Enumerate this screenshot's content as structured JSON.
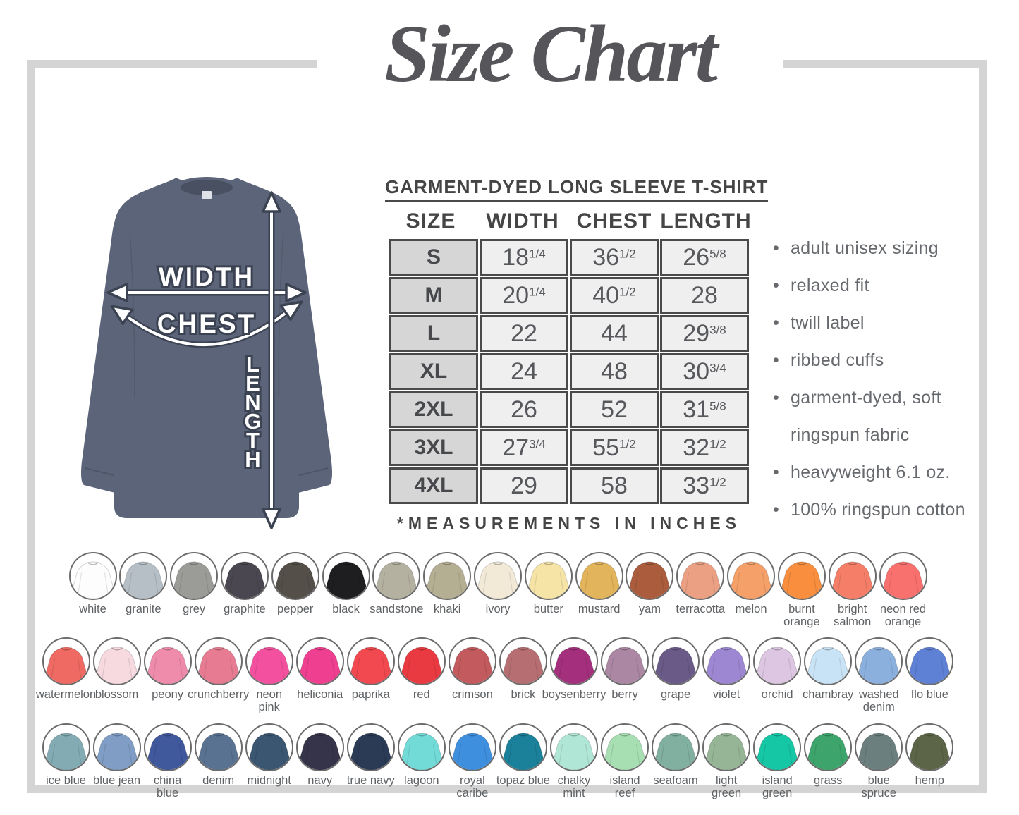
{
  "title": "Size Chart",
  "diagram": {
    "width_label": "WIDTH",
    "chest_label": "CHEST",
    "length_label": "LENGTH",
    "shirt_color": "#5b6478"
  },
  "size_table": {
    "title": "GARMENT-DYED LONG SLEEVE T-SHIRT",
    "columns": [
      "SIZE",
      "WIDTH",
      "CHEST",
      "LENGTH"
    ],
    "rows": [
      {
        "size": "S",
        "width": "18 1/4",
        "chest": "36 1/2",
        "length": "26 5/8"
      },
      {
        "size": "M",
        "width": "20 1/4",
        "chest": "40 1/2",
        "length": "28"
      },
      {
        "size": "L",
        "width": "22",
        "chest": "44",
        "length": "29 3/8"
      },
      {
        "size": "XL",
        "width": "24",
        "chest": "48",
        "length": "30 3/4"
      },
      {
        "size": "2XL",
        "width": "26",
        "chest": "52",
        "length": "31 5/8"
      },
      {
        "size": "3XL",
        "width": "27 3/4",
        "chest": "55 1/2",
        "length": "32 1/2"
      },
      {
        "size": "4XL",
        "width": "29",
        "chest": "58",
        "length": "33 1/2"
      }
    ],
    "footnote": "*MEASUREMENTS IN INCHES"
  },
  "features": [
    "adult unisex sizing",
    "relaxed fit",
    "twill label",
    "ribbed cuffs",
    "garment-dyed, soft ringspun fabric",
    "heavyweight 6.1 oz.",
    "100% ringspun cotton"
  ],
  "swatch_rows": [
    [
      {
        "name": "white",
        "color": "#fdfdfd",
        "lines": [
          "white"
        ]
      },
      {
        "name": "granite",
        "color": "#b6bfc6",
        "lines": [
          "granite"
        ]
      },
      {
        "name": "grey",
        "color": "#9b9b97",
        "lines": [
          "grey"
        ]
      },
      {
        "name": "graphite",
        "color": "#4a4750",
        "lines": [
          "graphite"
        ]
      },
      {
        "name": "pepper",
        "color": "#544f49",
        "lines": [
          "pepper"
        ]
      },
      {
        "name": "black",
        "color": "#1e1e20",
        "lines": [
          "black"
        ]
      },
      {
        "name": "sandstone",
        "color": "#b5b1a1",
        "lines": [
          "sandstone"
        ]
      },
      {
        "name": "khaki",
        "color": "#b4ae92",
        "lines": [
          "khaki"
        ]
      },
      {
        "name": "ivory",
        "color": "#f2ead7",
        "lines": [
          "ivory"
        ]
      },
      {
        "name": "butter",
        "color": "#f6e4a6",
        "lines": [
          "butter"
        ]
      },
      {
        "name": "mustard",
        "color": "#e2b45b",
        "lines": [
          "mustard"
        ]
      },
      {
        "name": "yam",
        "color": "#aa5c3d",
        "lines": [
          "yam"
        ]
      },
      {
        "name": "terracotta",
        "color": "#eca083",
        "lines": [
          "terracotta"
        ]
      },
      {
        "name": "melon",
        "color": "#f5a069",
        "lines": [
          "melon"
        ]
      },
      {
        "name": "burnt orange",
        "color": "#f88e3e",
        "lines": [
          "burnt",
          "orange"
        ]
      },
      {
        "name": "bright salmon",
        "color": "#f57e68",
        "lines": [
          "bright",
          "salmon"
        ]
      },
      {
        "name": "neon red orange",
        "color": "#f9716f",
        "lines": [
          "neon red",
          "orange"
        ]
      }
    ],
    [
      {
        "name": "watermelon",
        "color": "#ef6a62",
        "lines": [
          "watermelon"
        ]
      },
      {
        "name": "blossom",
        "color": "#f7d9e0",
        "lines": [
          "blossom"
        ]
      },
      {
        "name": "peony",
        "color": "#f08cab",
        "lines": [
          "peony"
        ]
      },
      {
        "name": "crunchberry",
        "color": "#e77b92",
        "lines": [
          "crunchberry"
        ]
      },
      {
        "name": "neon pink",
        "color": "#f450a0",
        "lines": [
          "neon",
          "pink"
        ]
      },
      {
        "name": "heliconia",
        "color": "#ef3f90",
        "lines": [
          "heliconia"
        ]
      },
      {
        "name": "paprika",
        "color": "#f2484f",
        "lines": [
          "paprika"
        ]
      },
      {
        "name": "red",
        "color": "#e93a41",
        "lines": [
          "red"
        ]
      },
      {
        "name": "crimson",
        "color": "#c25a5e",
        "lines": [
          "crimson"
        ]
      },
      {
        "name": "brick",
        "color": "#b66e72",
        "lines": [
          "brick"
        ]
      },
      {
        "name": "boysenberry",
        "color": "#a32f7d",
        "lines": [
          "boysenberry"
        ]
      },
      {
        "name": "berry",
        "color": "#ab87a4",
        "lines": [
          "berry"
        ]
      },
      {
        "name": "grape",
        "color": "#6a5a88",
        "lines": [
          "grape"
        ]
      },
      {
        "name": "violet",
        "color": "#9d87d2",
        "lines": [
          "violet"
        ]
      },
      {
        "name": "orchid",
        "color": "#dcc6e2",
        "lines": [
          "orchid"
        ]
      },
      {
        "name": "chambray",
        "color": "#c8e3f5",
        "lines": [
          "chambray"
        ]
      },
      {
        "name": "washed denim",
        "color": "#8cb0de",
        "lines": [
          "washed",
          "denim"
        ]
      },
      {
        "name": "flo blue",
        "color": "#5e80d5",
        "lines": [
          "flo blue"
        ]
      }
    ],
    [
      {
        "name": "ice blue",
        "color": "#83abb4",
        "lines": [
          "ice blue"
        ]
      },
      {
        "name": "blue jean",
        "color": "#7f9dc5",
        "lines": [
          "blue jean"
        ]
      },
      {
        "name": "china blue",
        "color": "#40589c",
        "lines": [
          "china",
          "blue"
        ]
      },
      {
        "name": "denim",
        "color": "#5a7291",
        "lines": [
          "denim"
        ]
      },
      {
        "name": "midnight",
        "color": "#3b5671",
        "lines": [
          "midnight"
        ]
      },
      {
        "name": "navy",
        "color": "#35344a",
        "lines": [
          "navy"
        ]
      },
      {
        "name": "true navy",
        "color": "#2b3a55",
        "lines": [
          "true navy"
        ]
      },
      {
        "name": "lagoon",
        "color": "#72dbd8",
        "lines": [
          "lagoon"
        ]
      },
      {
        "name": "royal caribe",
        "color": "#3f8fdf",
        "lines": [
          "royal",
          "caribe"
        ]
      },
      {
        "name": "topaz blue",
        "color": "#1b8099",
        "lines": [
          "topaz blue"
        ]
      },
      {
        "name": "chalky mint",
        "color": "#b0e6d6",
        "lines": [
          "chalky",
          "mint"
        ]
      },
      {
        "name": "island reef",
        "color": "#a7dfb3",
        "lines": [
          "island",
          "reef"
        ]
      },
      {
        "name": "seafoam",
        "color": "#82b0a0",
        "lines": [
          "seafoam"
        ]
      },
      {
        "name": "light green",
        "color": "#96b596",
        "lines": [
          "light",
          "green"
        ]
      },
      {
        "name": "island green",
        "color": "#15c7a5",
        "lines": [
          "island",
          "green"
        ]
      },
      {
        "name": "grass",
        "color": "#3da56b",
        "lines": [
          "grass"
        ]
      },
      {
        "name": "blue spruce",
        "color": "#6a7f7e",
        "lines": [
          "blue",
          "spruce"
        ]
      },
      {
        "name": "hemp",
        "color": "#5c6547",
        "lines": [
          "hemp"
        ]
      }
    ]
  ]
}
